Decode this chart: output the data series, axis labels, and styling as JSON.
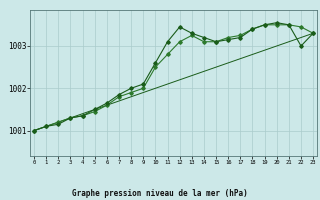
{
  "xlabel": "Graphe pression niveau de la mer (hPa)",
  "background_color": "#cce8e8",
  "grid_color": "#aacccc",
  "line_color": "#1a5c1a",
  "line_color2": "#2d7a2d",
  "x_ticks": [
    0,
    1,
    2,
    3,
    4,
    5,
    6,
    7,
    8,
    9,
    10,
    11,
    12,
    13,
    14,
    15,
    16,
    17,
    18,
    19,
    20,
    21,
    22,
    23
  ],
  "y_ticks": [
    1001,
    1002,
    1003
  ],
  "ylim": [
    1000.4,
    1003.85
  ],
  "xlim": [
    -0.3,
    23.3
  ],
  "series1_y": [
    1001.0,
    1001.1,
    1001.15,
    1001.3,
    1001.35,
    1001.5,
    1001.65,
    1001.85,
    1002.0,
    1002.1,
    1002.6,
    1003.1,
    1003.45,
    1003.3,
    1003.2,
    1003.1,
    1003.15,
    1003.2,
    1003.4,
    1003.5,
    1003.55,
    1003.5,
    1003.0,
    1003.3
  ],
  "series2_y": [
    1001.0,
    1001.1,
    1001.2,
    1001.3,
    1001.35,
    1001.45,
    1001.6,
    1001.8,
    1001.9,
    1002.0,
    1002.5,
    1002.8,
    1003.1,
    1003.25,
    1003.1,
    1003.1,
    1003.2,
    1003.25,
    1003.4,
    1003.5,
    1003.5,
    1003.5,
    1003.45,
    1003.3
  ],
  "trend_x": [
    0,
    23
  ],
  "trend_y": [
    1001.0,
    1003.3
  ]
}
